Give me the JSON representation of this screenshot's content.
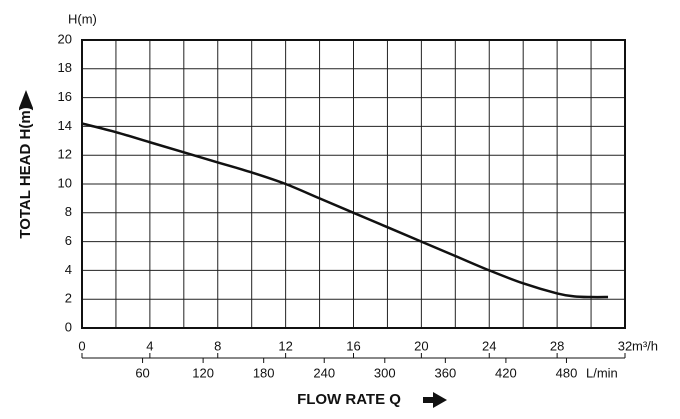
{
  "chart_data": {
    "type": "line",
    "y_unit_label": "H(m)",
    "y_title": "TOTAL HEAD H(m)",
    "x_title": "FLOW RATE Q",
    "x_unit_label": "m³/h",
    "x2_unit_label": "L/min",
    "xlim": [
      0,
      32
    ],
    "xticks": [
      0,
      4,
      8,
      12,
      16,
      20,
      24,
      28,
      32
    ],
    "ylim": [
      0,
      20
    ],
    "yticks": [
      0,
      2,
      4,
      6,
      8,
      10,
      12,
      14,
      16,
      18,
      20
    ],
    "x2lim": [
      0,
      538
    ],
    "x2ticks": [
      60,
      120,
      180,
      240,
      300,
      360,
      420,
      480
    ],
    "grid": true,
    "series": [
      {
        "color": "#111111",
        "x": [
          0,
          2,
          4,
          6,
          8,
          10,
          12,
          14,
          16,
          18,
          20,
          22,
          24,
          26,
          28,
          29,
          30,
          31
        ],
        "values": [
          14.2,
          13.6,
          12.9,
          12.2,
          11.5,
          10.8,
          10.0,
          9.0,
          8.0,
          7.0,
          6.0,
          5.0,
          4.0,
          3.1,
          2.4,
          2.2,
          2.15,
          2.15
        ]
      }
    ]
  }
}
